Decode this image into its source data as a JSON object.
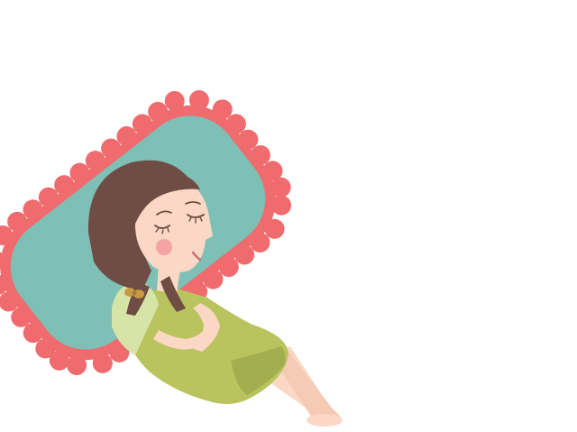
{
  "scene": {
    "subject": "illustration",
    "colors": {
      "background": "#ffffff",
      "pillow_frill": "#ef6b6e",
      "pillow": "#7ebfb6",
      "hair": "#6f4c44",
      "skin": "#fbd8c5",
      "cheek": "#f5a3a5",
      "dress": "#b9c45e",
      "dress_shadow": "#a3ae4f",
      "sleeve_light": "#d6e4a8",
      "bow": "#c79a45"
    }
  }
}
